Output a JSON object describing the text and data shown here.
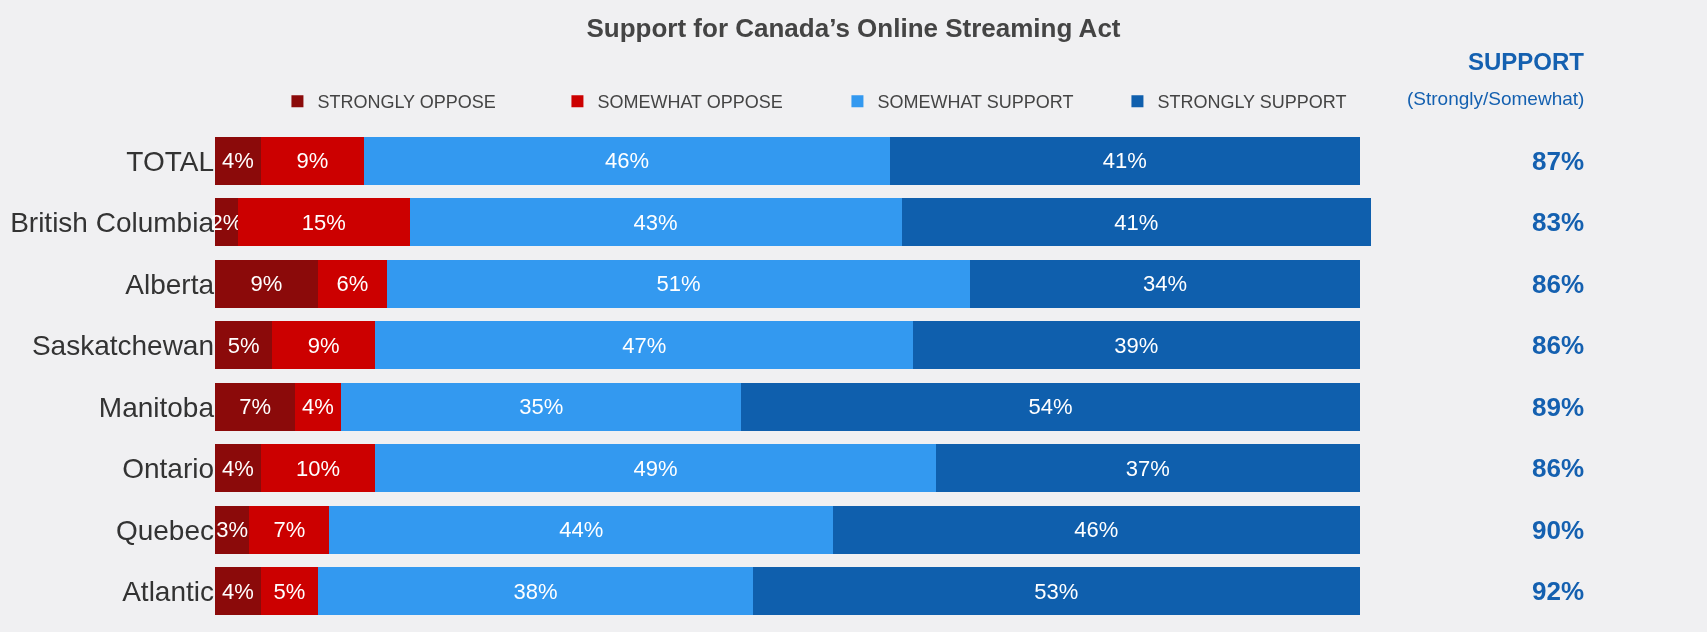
{
  "chart_data": {
    "type": "bar",
    "orientation": "horizontal",
    "stacked": true,
    "title": "Support for Canada’s Online Streaming Act",
    "categories": [
      "TOTAL",
      "British Columbia",
      "Alberta",
      "Saskatchewan",
      "Manitoba",
      "Ontario",
      "Quebec",
      "Atlantic"
    ],
    "series": [
      {
        "name": "STRONGLY OPPOSE",
        "color": "#8b0a0a",
        "values": [
          4,
          2,
          9,
          5,
          7,
          4,
          3,
          4
        ],
        "value_labels": [
          "4%",
          "2%",
          "9%",
          "5%",
          "7%",
          "4%",
          "3%",
          "4%"
        ]
      },
      {
        "name": "SOMEWHAT OPPOSE",
        "color": "#cc0000",
        "values": [
          9,
          15,
          6,
          9,
          4,
          10,
          7,
          5
        ],
        "value_labels": [
          "9%",
          "15%",
          "6%",
          "9%",
          "4%",
          "10%",
          "7%",
          "5%"
        ]
      },
      {
        "name": "SOMEWHAT SUPPORT",
        "color": "#3399f0",
        "values": [
          46,
          43,
          51,
          47,
          35,
          49,
          44,
          38
        ],
        "value_labels": [
          "46%",
          "43%",
          "51%",
          "47%",
          "35%",
          "49%",
          "44%",
          "38%"
        ]
      },
      {
        "name": "STRONGLY SUPPORT",
        "color": "#0f5fad",
        "values": [
          41,
          41,
          34,
          39,
          54,
          37,
          46,
          53
        ],
        "value_labels": [
          "41%",
          "41%",
          "34%",
          "39%",
          "54%",
          "37%",
          "46%",
          "53%"
        ]
      }
    ],
    "legend": "top",
    "annotations": [
      "SUPPORT",
      "(Strongly/Somewhat)",
      "87%",
      "83%",
      "86%",
      "86%",
      "89%",
      "86%",
      "90%",
      "92%"
    ]
  }
}
